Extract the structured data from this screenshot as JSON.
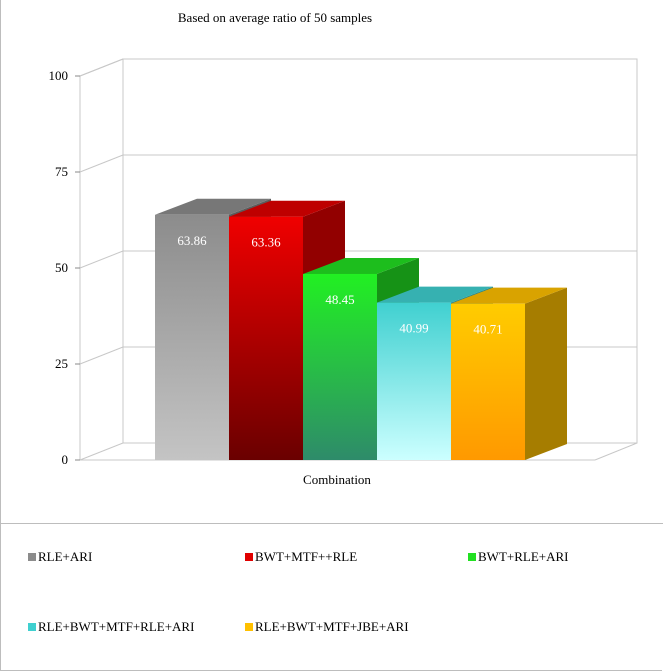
{
  "chart_data": {
    "type": "bar",
    "title": "Based on average ratio of 50 samples",
    "xlabel": "Combination",
    "ylabel": "",
    "ylim": [
      0,
      100
    ],
    "yticks": [
      0,
      25,
      50,
      75,
      100
    ],
    "grid": true,
    "legend_position": "bottom",
    "categories": [
      "Combination"
    ],
    "series": [
      {
        "name": "RLE+ARI",
        "values": [
          63.86
        ],
        "label": "63.86",
        "color": "#8c8c8c"
      },
      {
        "name": "BWT+MTF++RLE",
        "values": [
          63.36
        ],
        "label": "63.36",
        "color": "#e00000"
      },
      {
        "name": "BWT+RLE+ARI",
        "values": [
          48.45
        ],
        "label": "48.45",
        "color": "#22e022"
      },
      {
        "name": "RLE+BWT+MTF+RLE+ARI",
        "values": [
          40.99
        ],
        "label": "40.99",
        "color": "#40d0d0"
      },
      {
        "name": "RLE+BWT+MTF+JBE+ARI",
        "values": [
          40.71
        ],
        "label": "40.71",
        "color": "#ffc000"
      }
    ]
  }
}
